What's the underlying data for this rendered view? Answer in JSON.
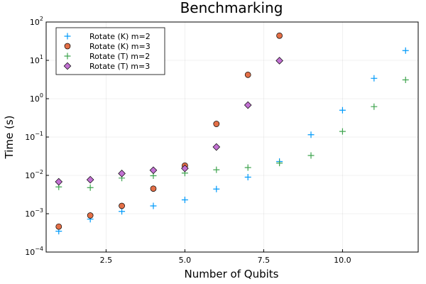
{
  "chart_data": {
    "type": "scatter",
    "title": "Benchmarking",
    "xlabel": "Number of Qubits",
    "ylabel": "Time (s)",
    "xlim": [
      0.6,
      12.4
    ],
    "ylim": [
      0.0001,
      100
    ],
    "yscale": "log",
    "grid": true,
    "legend_position": "top-left",
    "x_ticks": [
      {
        "value": 2.5,
        "label": "2.5"
      },
      {
        "value": 5.0,
        "label": "5.0"
      },
      {
        "value": 7.5,
        "label": "7.5"
      },
      {
        "value": 10.0,
        "label": "10.0"
      }
    ],
    "y_ticks": [
      {
        "value": 0.0001,
        "base": "10",
        "exp": "−4"
      },
      {
        "value": 0.001,
        "base": "10",
        "exp": "−3"
      },
      {
        "value": 0.01,
        "base": "10",
        "exp": "−2"
      },
      {
        "value": 0.1,
        "base": "10",
        "exp": "−1"
      },
      {
        "value": 1,
        "base": "10",
        "exp": "0"
      },
      {
        "value": 10,
        "base": "10",
        "exp": "1"
      },
      {
        "value": 100,
        "base": "10",
        "exp": "2"
      }
    ],
    "series": [
      {
        "name": "Rotate (K) m=2",
        "marker": "plus",
        "color": "#009AFA",
        "x": [
          1,
          2,
          3,
          4,
          5,
          6,
          7,
          8,
          9,
          10,
          11,
          12
        ],
        "y": [
          0.00035,
          0.00072,
          0.00115,
          0.0016,
          0.0023,
          0.0044,
          0.009,
          0.023,
          0.115,
          0.5,
          3.4,
          18
        ]
      },
      {
        "name": "Rotate (K) m=3",
        "marker": "circle",
        "color": "#E36F47",
        "x": [
          1,
          2,
          3,
          4,
          5,
          6,
          7,
          8
        ],
        "y": [
          0.00046,
          0.0009,
          0.0016,
          0.0045,
          0.018,
          0.22,
          4.2,
          44
        ]
      },
      {
        "name": "Rotate (T) m=2",
        "marker": "plus",
        "color": "#3EA44E",
        "x": [
          1,
          2,
          3,
          4,
          5,
          6,
          7,
          8,
          9,
          10,
          11,
          12
        ],
        "y": [
          0.005,
          0.0048,
          0.0085,
          0.0098,
          0.0115,
          0.014,
          0.016,
          0.021,
          0.033,
          0.14,
          0.62,
          3.1
        ]
      },
      {
        "name": "Rotate (T) m=3",
        "marker": "diamond",
        "color": "#C271D2",
        "x": [
          1,
          2,
          3,
          4,
          5,
          6,
          7,
          8
        ],
        "y": [
          0.0068,
          0.0077,
          0.0112,
          0.0136,
          0.0152,
          0.055,
          0.68,
          9.8
        ]
      }
    ]
  }
}
